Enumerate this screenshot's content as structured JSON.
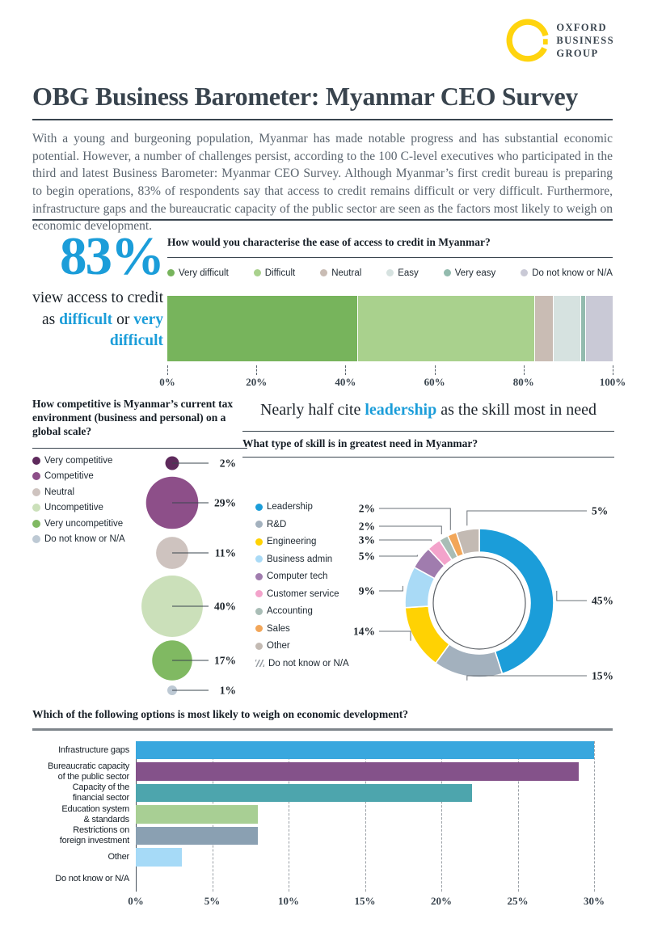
{
  "brand": {
    "lines": [
      "OXFORD",
      "BUSINESS",
      "GROUP"
    ],
    "ring_color": "#FFD40E"
  },
  "header": {
    "title": "OBG Business Barometer: Myanmar CEO Survey"
  },
  "intro": "With a young and burgeoning population, Myanmar has made notable progress and has substantial economic potential. However, a number of challenges persist, according to the 100 C-level executives who participated in the third and latest Business Barometer: Myanmar CEO Survey. Although Myanmar’s first credit bureau is preparing to begin operations, 83% of respondents say that access to credit remains difficult or very difficult. Furthermore, infrastructure gaps and the bureaucratic capacity of the public sector are seen as the factors most likely to weigh on economic development.",
  "colors": {
    "accent_blue": "#1B9DD9",
    "ink": "#39444E"
  },
  "stat": {
    "value": "83%",
    "parts": [
      {
        "text": "view access to credit as ",
        "blue": false
      },
      {
        "text": "difficult",
        "blue": true
      },
      {
        "text": " or ",
        "blue": false
      },
      {
        "text": "very difficult",
        "blue": true
      }
    ]
  },
  "skills_headline": {
    "parts": [
      {
        "text": "Nearly half cite ",
        "blue": false
      },
      {
        "text": "leadership",
        "blue": true
      },
      {
        "text": " as the skill most in need",
        "blue": false
      }
    ]
  },
  "chart_data": [
    {
      "id": "credit_access",
      "type": "bar",
      "variant": "stacked-horizontal",
      "title": "How would you characterise the ease of access to credit in Myanmar?",
      "categories": [
        "Very difficult",
        "Difficult",
        "Neutral",
        "Easy",
        "Very easy",
        "Do not know or N/A"
      ],
      "values": [
        43,
        40,
        4,
        6,
        1,
        6
      ],
      "colors": [
        "#77B45C",
        "#A9D18D",
        "#C9BCB4",
        "#D6E2E0",
        "#93BBAE",
        "#C9C9D6"
      ],
      "xlim": [
        0,
        100
      ],
      "ticks": [
        "0%",
        "20%",
        "40%",
        "60%",
        "80%",
        "100%"
      ],
      "legend_position": "top"
    },
    {
      "id": "tax_competitiveness",
      "type": "bubble",
      "title": "How competitive is Myanmar’s current tax environment (business and personal) on a global scale?",
      "categories": [
        "Very competitive",
        "Competitive",
        "Neutral",
        "Uncompetitive",
        "Very uncompetitive",
        "Do not know or N/A"
      ],
      "values": [
        2,
        29,
        11,
        40,
        17,
        1
      ],
      "labels": [
        "2%",
        "29%",
        "11%",
        "40%",
        "17%",
        "1%"
      ],
      "colors": [
        "#5E2A5C",
        "#8D4F89",
        "#CEC3BF",
        "#CBE0BA",
        "#80B962",
        "#BDC9D4"
      ],
      "legend_position": "left"
    },
    {
      "id": "skills_need",
      "type": "pie",
      "variant": "donut",
      "title": "What type of skill is in greatest need in Myanmar?",
      "categories": [
        "Leadership",
        "R&D",
        "Engineering",
        "Business admin",
        "Computer tech",
        "Customer service",
        "Accounting",
        "Sales",
        "Other",
        "Do not know or N/A"
      ],
      "values": [
        45,
        15,
        14,
        9,
        5,
        3,
        2,
        2,
        5,
        0
      ],
      "colors": [
        "#1B9DD9",
        "#A3B1BE",
        "#FFD203",
        "#A9DAF6",
        "#A07CAE",
        "#F3A3CB",
        "#A9BDB6",
        "#F2A659",
        "#C3BAB3",
        "hatch"
      ],
      "legend_position": "left"
    },
    {
      "id": "economic_weight",
      "type": "bar",
      "variant": "horizontal",
      "title": "Which of the following options is most likely to weigh on economic development?",
      "categories": [
        "Infrastructure gaps",
        "Bureaucratic capacity\nof the public sector",
        "Capacity of the\nfinancial sector",
        "Education system\n& standards",
        "Restrictions on\nforeign investment",
        "Other",
        "Do not know or N/A"
      ],
      "values": [
        30,
        29,
        22,
        8,
        8,
        3,
        0
      ],
      "colors": [
        "#39A7DE",
        "#84528A",
        "#4DA5AD",
        "#A8CF94",
        "#8AA0B2",
        "#A6DAF7",
        "#A6DAF7"
      ],
      "xlim": [
        0,
        30
      ],
      "ticks": [
        "0%",
        "5%",
        "10%",
        "15%",
        "20%",
        "25%",
        "30%"
      ],
      "grid": true
    }
  ]
}
